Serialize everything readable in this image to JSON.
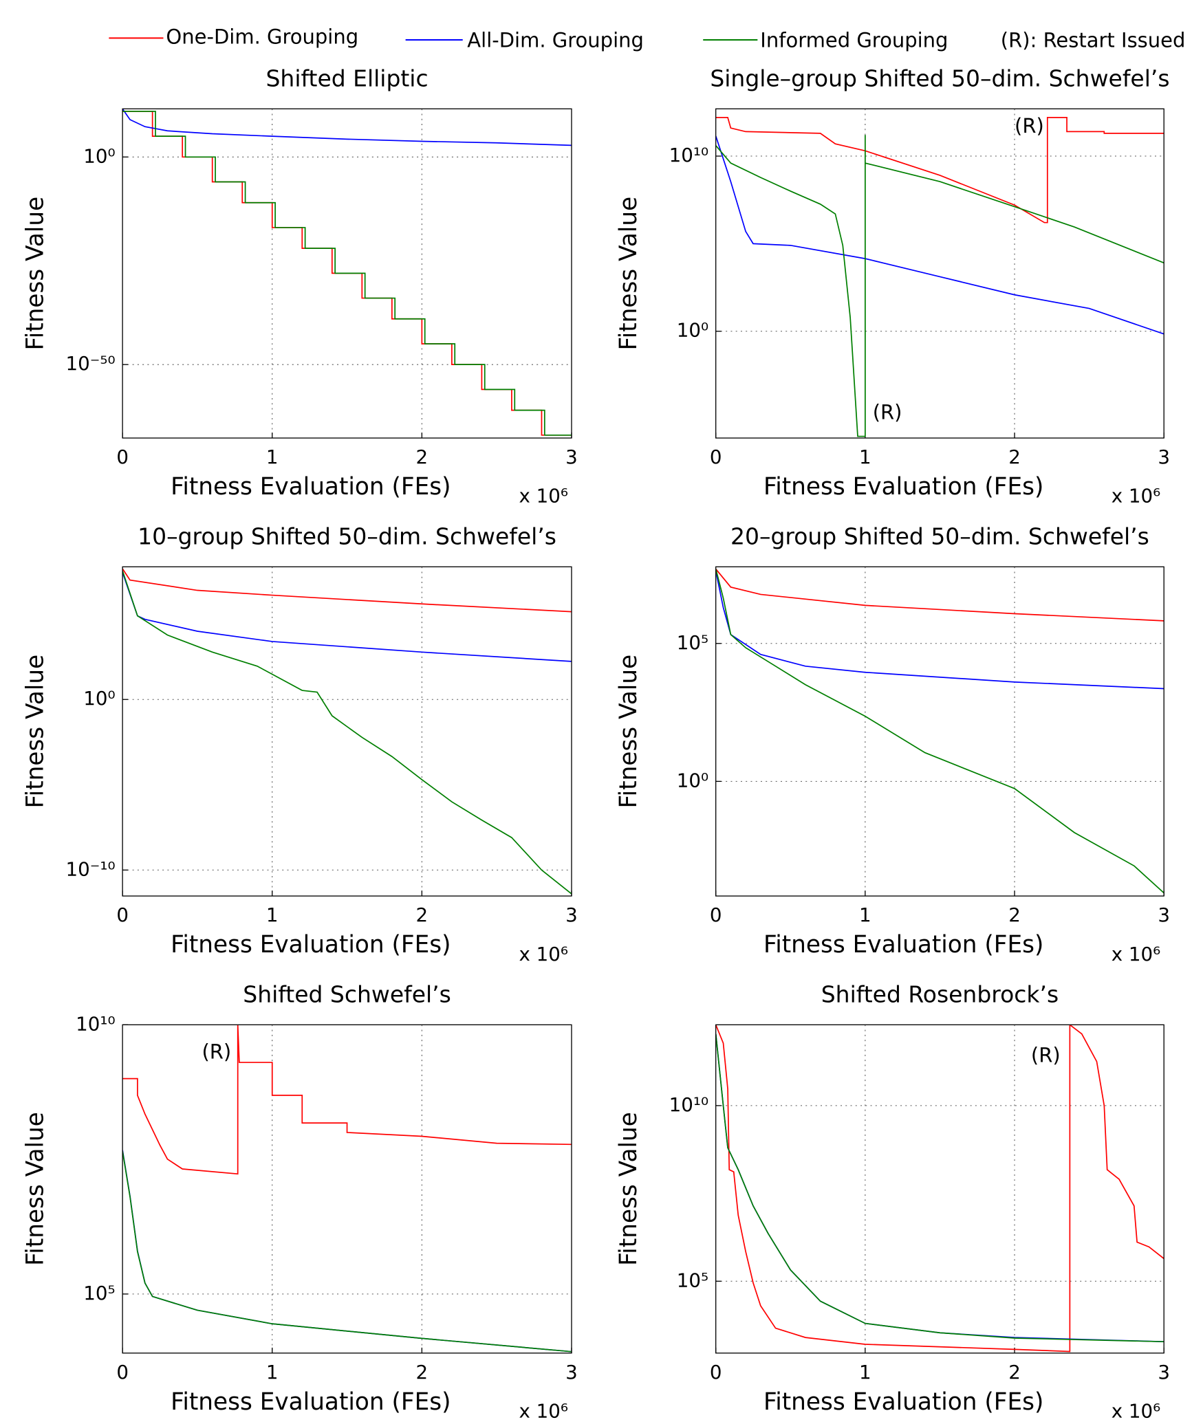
{
  "legend_note": "(R): Restart Issued",
  "chart_data": [
    {
      "type": "line",
      "title": "Shifted Elliptic",
      "xlabel": "Fitness Evaluation (FEs)",
      "ylabel": "Fitness Value",
      "x_multiplier": "x 10⁶",
      "xlim": [
        0,
        3
      ],
      "xticks": [
        0,
        1,
        2,
        3
      ],
      "ylim": [
        2e-68,
        400000000000.0
      ],
      "yscale": "log",
      "yticks": [
        {
          "value": 1e-50,
          "label": "10⁻⁵⁰"
        },
        {
          "value": 1,
          "label": "10⁰"
        }
      ],
      "grid": true,
      "series": [
        {
          "name": "One-Dim. Grouping",
          "color": "#ff0000",
          "x": [
            0,
            0.2,
            0.2,
            0.4,
            0.4,
            0.6,
            0.6,
            0.8,
            0.8,
            1,
            1,
            1.2,
            1.2,
            1.4,
            1.4,
            1.6,
            1.6,
            1.8,
            1.8,
            2,
            2,
            2.2,
            2.2,
            2.4,
            2.4,
            2.6,
            2.6,
            2.8,
            2.8,
            3
          ],
          "values": [
            100000000000.0,
            100000000000.0,
            100000.0,
            100000.0,
            1,
            1,
            1e-06,
            1e-06,
            1e-11,
            1e-11,
            1e-17,
            1e-17,
            1e-22,
            1e-22,
            1e-28,
            1e-28,
            1e-34,
            1e-34,
            1e-39,
            1e-39,
            1e-45,
            1e-45,
            1e-50,
            1e-50,
            1e-56,
            1e-56,
            1e-61,
            1e-61,
            1e-67,
            1e-67
          ]
        },
        {
          "name": "All-Dim. Grouping",
          "color": "#0000ff",
          "x": [
            0,
            0.05,
            0.15,
            0.3,
            0.6,
            1,
            1.5,
            2,
            2.5,
            3
          ],
          "values": [
            400000000000.0,
            1000000000.0,
            20000000.0,
            2000000.0,
            400000.0,
            100000.0,
            20000.0,
            6000.0,
            2500.0,
            630
          ]
        },
        {
          "name": "Informed Grouping",
          "color": "#007f00",
          "x": [
            0,
            0.22,
            0.22,
            0.42,
            0.42,
            0.62,
            0.62,
            0.82,
            0.82,
            1.02,
            1.02,
            1.22,
            1.22,
            1.42,
            1.42,
            1.62,
            1.62,
            1.82,
            1.82,
            2.02,
            2.02,
            2.22,
            2.22,
            2.42,
            2.42,
            2.62,
            2.62,
            2.82,
            2.82,
            3
          ],
          "values": [
            100000000000.0,
            100000000000.0,
            100000.0,
            100000.0,
            1,
            1,
            1e-06,
            1e-06,
            1e-11,
            1e-11,
            1e-17,
            1e-17,
            1e-22,
            1e-22,
            1e-28,
            1e-28,
            1e-34,
            1e-34,
            1e-39,
            1e-39,
            1e-45,
            1e-45,
            1e-50,
            1e-50,
            1e-56,
            1e-56,
            1e-61,
            1e-61,
            1e-67,
            1e-67
          ]
        }
      ]
    },
    {
      "type": "line",
      "title": "Single–group Shifted 50–dim. Schwefel’s",
      "xlabel": "Fitness Evaluation (FEs)",
      "ylabel": "Fitness Value",
      "x_multiplier": "x 10⁶",
      "xlim": [
        0,
        3
      ],
      "xticks": [
        0,
        1,
        2,
        3
      ],
      "ylim": [
        8e-07,
        5000000000000.0
      ],
      "yscale": "log",
      "yticks": [
        {
          "value": 1,
          "label": "10⁰"
        },
        {
          "value": 10000000000.0,
          "label": "10¹⁰"
        }
      ],
      "grid": true,
      "series": [
        {
          "name": "One-Dim. Grouping",
          "color": "#ff0000",
          "x": [
            0,
            0.08,
            0.1,
            0.2,
            0.7,
            0.8,
            1,
            1.5,
            2,
            2.2,
            2.22,
            2.22,
            2.35,
            2.35,
            2.6,
            2.6,
            3
          ],
          "values": [
            1600000000000.0,
            1600000000000.0,
            400000000000.0,
            250000000000.0,
            200000000000.0,
            50000000000.0,
            20000000000.0,
            800000000.0,
            16000000.0,
            1600000.0,
            1600000.0,
            1600000000000.0,
            1600000000000.0,
            250000000000.0,
            250000000000.0,
            200000000000.0,
            200000000000.0
          ]
        },
        {
          "name": "All-Dim. Grouping",
          "color": "#0000ff",
          "x": [
            0,
            0.1,
            0.2,
            0.25,
            0.5,
            1,
            1.5,
            2,
            2.5,
            3
          ],
          "values": [
            140000000000.0,
            350000000.0,
            500000.0,
            100000.0,
            80000.0,
            14000.0,
            1300.0,
            120,
            20,
            0.7
          ]
        },
        {
          "name": "Informed Grouping",
          "color": "#007f00",
          "x": [
            0,
            0.1,
            0.3,
            0.5,
            0.7,
            0.8,
            0.85,
            0.9,
            0.95,
            1,
            1,
            1,
            1.5,
            2,
            2.4,
            3
          ],
          "values": [
            40000000000.0,
            4000000000.0,
            600000000.0,
            100000000.0,
            18000000.0,
            5000000.0,
            80000.0,
            6,
            1e-06,
            1e-06,
            160000000000.0,
            4000000000.0,
            350000000.0,
            13000000.0,
            900000.0,
            8000.0
          ]
        }
      ],
      "annotations": [
        {
          "text": "(R)",
          "x": 2.0,
          "y": 450000000000.0,
          "color": "#ff0000"
        },
        {
          "text": "(R)",
          "x": 1.05,
          "y": 2e-05,
          "color": "#007f00"
        }
      ]
    },
    {
      "type": "line",
      "title": "10–group Shifted 50–dim. Schwefel’s",
      "xlabel": "Fitness Evaluation (FEs)",
      "ylabel": "Fitness Value",
      "x_multiplier": "x 10⁶",
      "xlim": [
        0,
        3
      ],
      "xticks": [
        0,
        1,
        2,
        3
      ],
      "ylim": [
        3e-12,
        60000000.0
      ],
      "yscale": "log",
      "yticks": [
        {
          "value": 1e-10,
          "label": "10⁻¹⁰"
        },
        {
          "value": 1,
          "label": "10⁰"
        }
      ],
      "grid": true,
      "series": [
        {
          "name": "One-Dim. Grouping",
          "color": "#ff0000",
          "x": [
            0,
            0.05,
            0.5,
            1,
            2,
            3
          ],
          "values": [
            46000000.0,
            10000000.0,
            2500000.0,
            1300000.0,
            400000.0,
            140000.0
          ]
        },
        {
          "name": "All-Dim. Grouping",
          "color": "#0000ff",
          "x": [
            0,
            0.1,
            0.15,
            0.5,
            1,
            2,
            3
          ],
          "values": [
            28000000.0,
            80000.0,
            50000.0,
            10000.0,
            2500.0,
            600,
            170
          ]
        },
        {
          "name": "Informed Grouping",
          "color": "#007f00",
          "x": [
            0,
            0.1,
            0.3,
            0.6,
            0.9,
            1.2,
            1.3,
            1.4,
            1.6,
            1.8,
            2,
            2.2,
            2.4,
            2.6,
            2.8,
            3
          ],
          "values": [
            35000000.0,
            80000.0,
            6000.0,
            600,
            90,
            3.4,
            2.7,
            0.11,
            0.006,
            0.00045,
            2e-05,
            1e-06,
            8.5e-08,
            8e-09,
            1e-10,
            4e-12
          ]
        }
      ]
    },
    {
      "type": "line",
      "title": "20–group Shifted 50–dim. Schwefel’s",
      "xlabel": "Fitness Evaluation (FEs)",
      "ylabel": "Fitness Value",
      "x_multiplier": "x 10⁶",
      "xlim": [
        0,
        3
      ],
      "xticks": [
        0,
        1,
        2,
        3
      ],
      "ylim": [
        7e-05,
        60000000.0
      ],
      "yscale": "log",
      "yticks": [
        {
          "value": 1,
          "label": "10⁰"
        },
        {
          "value": 100000.0,
          "label": "10⁵"
        }
      ],
      "grid": true,
      "series": [
        {
          "name": "One-Dim. Grouping",
          "color": "#ff0000",
          "x": [
            0,
            0.1,
            0.3,
            1,
            2,
            3
          ],
          "values": [
            50000000.0,
            11000000.0,
            6000000.0,
            2400000.0,
            1200000.0,
            660000.0
          ]
        },
        {
          "name": "All-Dim. Grouping",
          "color": "#0000ff",
          "x": [
            0,
            0.05,
            0.1,
            0.3,
            0.6,
            1,
            2,
            3
          ],
          "values": [
            43000000.0,
            2000000.0,
            210000.0,
            40000.0,
            15000.0,
            9000.0,
            4000.0,
            2300.0
          ]
        },
        {
          "name": "Informed Grouping",
          "color": "#007f00",
          "x": [
            0,
            0.05,
            0.1,
            0.2,
            0.4,
            0.6,
            1,
            1.4,
            2,
            2.4,
            2.8,
            3
          ],
          "values": [
            50000000.0,
            4400000.0,
            210000.0,
            70000.0,
            15000.0,
            3200.0,
            230,
            11,
            0.55,
            0.014,
            0.00087,
            9e-05
          ]
        }
      ]
    },
    {
      "type": "line",
      "title": "Shifted Schwefel’s",
      "xlabel": "Fitness Evaluation (FEs)",
      "ylabel": "Fitness Value",
      "x_multiplier": "x 10⁶",
      "xlim": [
        0,
        3
      ],
      "xticks": [
        0,
        1,
        2,
        3
      ],
      "ylim": [
        8000.0,
        10000000000.0
      ],
      "yscale": "log",
      "yticks": [
        {
          "value": 100000.0,
          "label": "10⁵"
        },
        {
          "value": 10000000000.0,
          "label": "10¹⁰"
        }
      ],
      "grid": true,
      "series": [
        {
          "name": "One-Dim. Grouping",
          "color": "#ff0000",
          "x": [
            0,
            0.1,
            0.1,
            0.15,
            0.25,
            0.3,
            0.4,
            0.77,
            0.77,
            0.78,
            1,
            1,
            1.2,
            1.2,
            1.5,
            1.5,
            2,
            2.5,
            3
          ],
          "values": [
            1000000000.0,
            1000000000.0,
            490000000.0,
            220000000.0,
            58000000.0,
            32000000.0,
            21000000.0,
            17000000.0,
            10000000000.0,
            2000000000.0,
            2000000000.0,
            490000000.0,
            490000000.0,
            150000000.0,
            150000000.0,
            100000000.0,
            85000000.0,
            63000000.0,
            60000000.0
          ]
        },
        {
          "name": "All-Dim. Grouping",
          "color": "#0000ff",
          "x": [
            0,
            0.05,
            0.1,
            0.15,
            0.2,
            0.5,
            1,
            2,
            3
          ],
          "values": [
            47000000.0,
            6600000.0,
            630000.0,
            160000.0,
            90000.0,
            50000.0,
            28000.0,
            15000.0,
            8500.0
          ]
        },
        {
          "name": "Informed Grouping",
          "color": "#007f00",
          "x": [
            0,
            0.05,
            0.1,
            0.15,
            0.2,
            0.5,
            1,
            2,
            3
          ],
          "values": [
            45000000.0,
            6400000.0,
            610000.0,
            160000.0,
            90000.0,
            50000.0,
            28000.0,
            15000.0,
            8500.0
          ]
        }
      ],
      "annotations": [
        {
          "text": "(R)",
          "x": 0.53,
          "y": 3000000000.0,
          "color": "#ff0000"
        }
      ]
    },
    {
      "type": "line",
      "title": "Shifted Rosenbrock’s",
      "xlabel": "Fitness Evaluation (FEs)",
      "ylabel": "Fitness Value",
      "x_multiplier": "x 10⁶",
      "xlim": [
        0,
        3
      ],
      "xticks": [
        0,
        1,
        2,
        3
      ],
      "ylim": [
        900,
        2000000000000.0
      ],
      "yscale": "log",
      "yticks": [
        {
          "value": 100000.0,
          "label": "10⁵"
        },
        {
          "value": 10000000000.0,
          "label": "10¹⁰"
        }
      ],
      "grid": true,
      "series": [
        {
          "name": "One-Dim. Grouping",
          "color": "#ff0000",
          "x": [
            0,
            0.05,
            0.08,
            0.09,
            0.12,
            0.15,
            0.2,
            0.25,
            0.3,
            0.4,
            0.6,
            1,
            2,
            2.37,
            2.37,
            2.45,
            2.55,
            2.6,
            2.62,
            2.7,
            2.8,
            2.82,
            2.9,
            3
          ],
          "values": [
            2000000000000.0,
            600000000000.0,
            30000000000.0,
            150000000.0,
            130000000.0,
            7600000.0,
            700000.0,
            90000.0,
            20000.0,
            4600.0,
            2500.0,
            1600.0,
            1150.0,
            1000.0,
            2000000000000.0,
            1100000000000.0,
            180000000000.0,
            10000000000.0,
            150000000.0,
            80000000.0,
            14000000.0,
            1300000.0,
            950000.0,
            440000.0
          ]
        },
        {
          "name": "All-Dim. Grouping",
          "color": "#0000ff",
          "x": [
            0,
            0.05,
            0.08,
            0.15,
            0.25,
            0.35,
            0.5,
            0.7,
            1,
            1.5,
            2,
            3
          ],
          "values": [
            1100000000000.0,
            10000000000.0,
            630000000.0,
            150000000.0,
            14000000.0,
            2300000.0,
            210000.0,
            27000.0,
            6300.0,
            3400.0,
            2500.0,
            1900.0
          ]
        },
        {
          "name": "Informed Grouping",
          "color": "#007f00",
          "x": [
            0,
            0.05,
            0.08,
            0.15,
            0.25,
            0.35,
            0.5,
            0.7,
            1,
            1.5,
            2,
            3
          ],
          "values": [
            1100000000000.0,
            10000000000.0,
            630000000.0,
            150000000.0,
            14000000.0,
            2300000.0,
            210000.0,
            27000.0,
            6300.0,
            3400.0,
            2400.0,
            1900.0
          ]
        }
      ],
      "annotations": [
        {
          "text": "(R)",
          "x": 2.11,
          "y": 250000000000.0,
          "color": "#ff0000"
        }
      ]
    }
  ]
}
